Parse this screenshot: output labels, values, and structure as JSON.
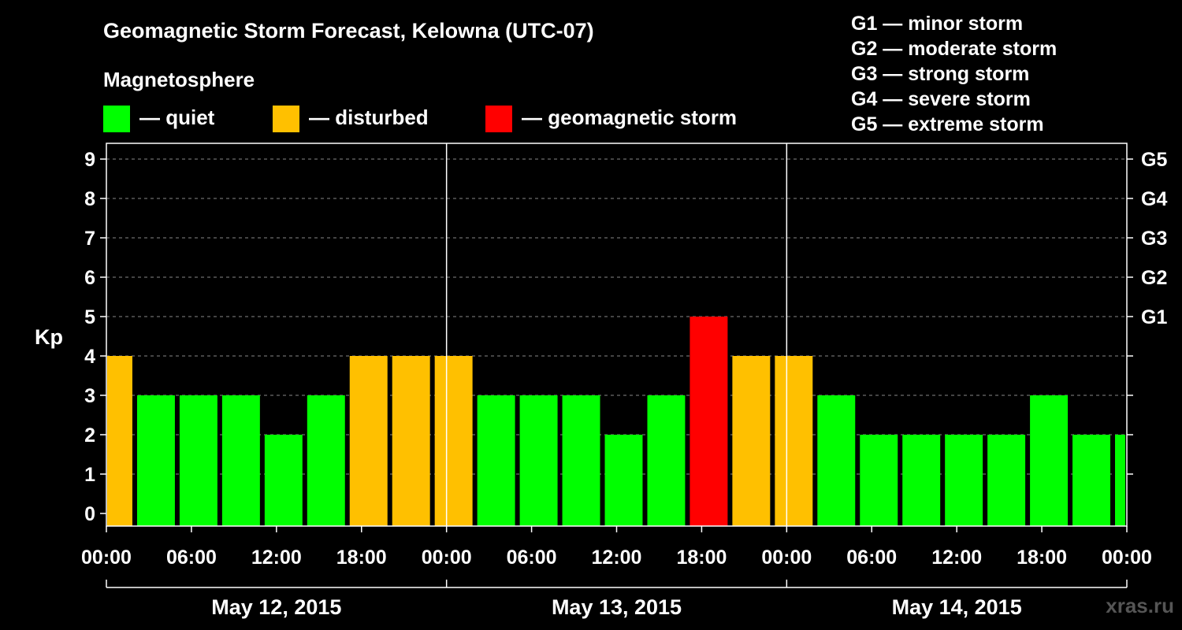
{
  "header": {
    "title": "Geomagnetic Storm Forecast, Kelowna (UTC-07)",
    "magnetosphere_label": "Magnetosphere"
  },
  "legend": [
    {
      "label": "— quiet",
      "color": "#00ff00"
    },
    {
      "label": "— disturbed",
      "color": "#ffc000"
    },
    {
      "label": "— geomagnetic storm",
      "color": "#ff0000"
    }
  ],
  "storm_levels": [
    "G1 — minor storm",
    "G2 — moderate storm",
    "G3 — strong storm",
    "G4 — severe storm",
    "G5 — extreme storm"
  ],
  "watermark": "xras.ru",
  "chart_data": {
    "type": "bar",
    "ylabel": "Kp",
    "ylim": [
      0,
      9
    ],
    "yticks": [
      0,
      1,
      2,
      3,
      4,
      5,
      6,
      7,
      8,
      9
    ],
    "right_ticks": [
      {
        "kp": 5,
        "label": "G1"
      },
      {
        "kp": 6,
        "label": "G2"
      },
      {
        "kp": 7,
        "label": "G3"
      },
      {
        "kp": 8,
        "label": "G4"
      },
      {
        "kp": 9,
        "label": "G5"
      }
    ],
    "x_tick_labels": [
      "00:00",
      "06:00",
      "12:00",
      "18:00",
      "00:00",
      "06:00",
      "12:00",
      "18:00",
      "00:00",
      "06:00",
      "12:00",
      "18:00",
      "00:00"
    ],
    "days": [
      "May 12, 2015",
      "May 13, 2015",
      "May 14, 2015"
    ],
    "interval_hours": 3,
    "x_range_hours": [
      0,
      72
    ],
    "colors": {
      "quiet": "#00ff00",
      "disturbed": "#ffc000",
      "storm": "#ff0000"
    },
    "bars": [
      {
        "start": 0,
        "end": 2,
        "kp": 4
      },
      {
        "start": 2,
        "end": 5,
        "kp": 3
      },
      {
        "start": 5,
        "end": 8,
        "kp": 3
      },
      {
        "start": 8,
        "end": 11,
        "kp": 3
      },
      {
        "start": 11,
        "end": 14,
        "kp": 2
      },
      {
        "start": 14,
        "end": 17,
        "kp": 3
      },
      {
        "start": 17,
        "end": 20,
        "kp": 4
      },
      {
        "start": 20,
        "end": 23,
        "kp": 4
      },
      {
        "start": 23,
        "end": 26,
        "kp": 4
      },
      {
        "start": 26,
        "end": 29,
        "kp": 3
      },
      {
        "start": 29,
        "end": 32,
        "kp": 3
      },
      {
        "start": 32,
        "end": 35,
        "kp": 3
      },
      {
        "start": 35,
        "end": 38,
        "kp": 2
      },
      {
        "start": 38,
        "end": 41,
        "kp": 3
      },
      {
        "start": 41,
        "end": 44,
        "kp": 5
      },
      {
        "start": 44,
        "end": 47,
        "kp": 4
      },
      {
        "start": 47,
        "end": 50,
        "kp": 4
      },
      {
        "start": 50,
        "end": 53,
        "kp": 3
      },
      {
        "start": 53,
        "end": 56,
        "kp": 2
      },
      {
        "start": 56,
        "end": 59,
        "kp": 2
      },
      {
        "start": 59,
        "end": 62,
        "kp": 2
      },
      {
        "start": 62,
        "end": 65,
        "kp": 2
      },
      {
        "start": 65,
        "end": 68,
        "kp": 3
      },
      {
        "start": 68,
        "end": 71,
        "kp": 2
      },
      {
        "start": 71,
        "end": 72,
        "kp": 2
      }
    ]
  }
}
